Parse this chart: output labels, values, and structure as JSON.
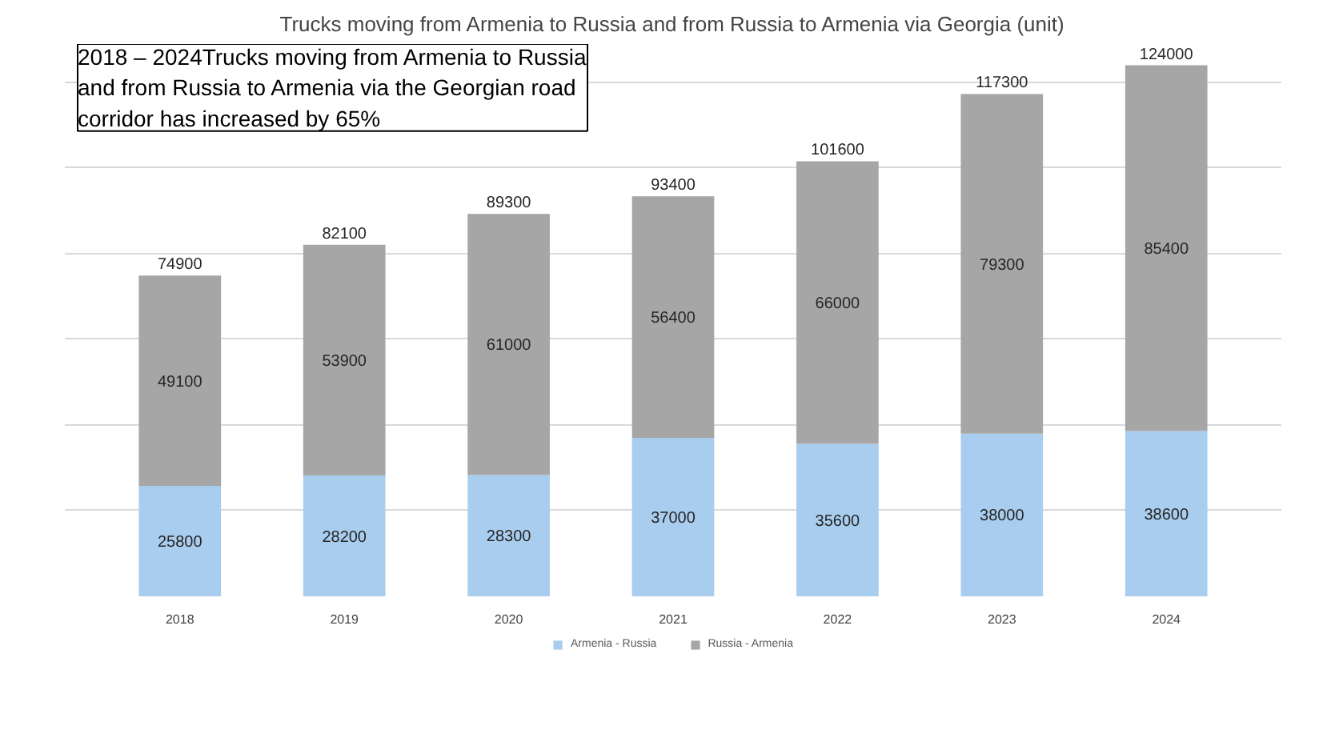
{
  "chart_data": {
    "type": "bar",
    "title": "Trucks moving from Armenia to Russia and from Russia to Armenia via Georgia (unit)",
    "categories": [
      "2018",
      "2019",
      "2020",
      "2021",
      "2022",
      "2023",
      "2024"
    ],
    "series": [
      {
        "name": "Armenia - Russia",
        "color": "#a9cdee",
        "values": [
          25800,
          28200,
          28300,
          37000,
          35600,
          38000,
          38600
        ]
      },
      {
        "name": "Russia - Armenia",
        "color": "#a6a6a6",
        "values": [
          49100,
          53900,
          61000,
          56400,
          66000,
          79300,
          85400
        ]
      }
    ],
    "stacked": true,
    "data_labels": true,
    "totals": [
      "74900",
      "82100",
      "89300",
      "93400",
      "101600",
      "117300",
      "124000"
    ],
    "tick_labels": "x",
    "grid": "y",
    "legend": "bottom",
    "annotations": [
      "2018 – 2024Trucks moving from Armenia to Russia and from Russia to Armenia via the Georgian road corridor has increased by 65%"
    ]
  }
}
